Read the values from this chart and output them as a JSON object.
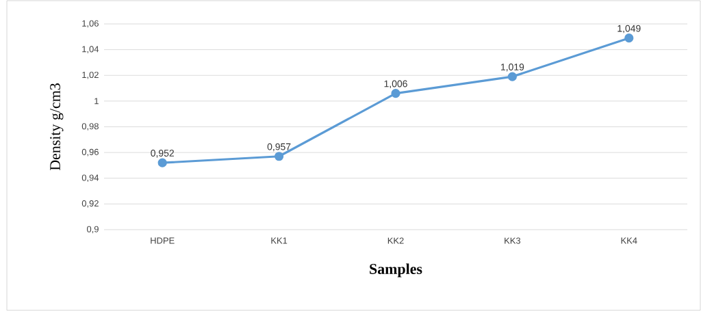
{
  "chart_data": {
    "type": "line",
    "xlabel": "Samples",
    "ylabel": "Density g/cm3",
    "categories": [
      "HDPE",
      "KK1",
      "KK2",
      "KK3",
      "KK4"
    ],
    "series": [
      {
        "color": "#5b9bd5",
        "values": [
          0.952,
          0.957,
          1.006,
          1.019,
          1.049
        ],
        "value_labels": [
          "0,952",
          "0,957",
          "1,006",
          "1,019",
          "1,049"
        ]
      }
    ],
    "ylim": [
      0.9,
      1.06
    ],
    "yticks": [
      {
        "value": 0.9,
        "label": "0,9"
      },
      {
        "value": 0.92,
        "label": "0,92"
      },
      {
        "value": 0.94,
        "label": "0,94"
      },
      {
        "value": 0.96,
        "label": "0,96"
      },
      {
        "value": 0.98,
        "label": "0,98"
      },
      {
        "value": 1,
        "label": "1"
      },
      {
        "value": 1.02,
        "label": "1,02"
      },
      {
        "value": 1.04,
        "label": "1,04"
      },
      {
        "value": 1.06,
        "label": "1,06"
      }
    ],
    "grid": "y",
    "marker": "circle",
    "line_style": "solid"
  }
}
